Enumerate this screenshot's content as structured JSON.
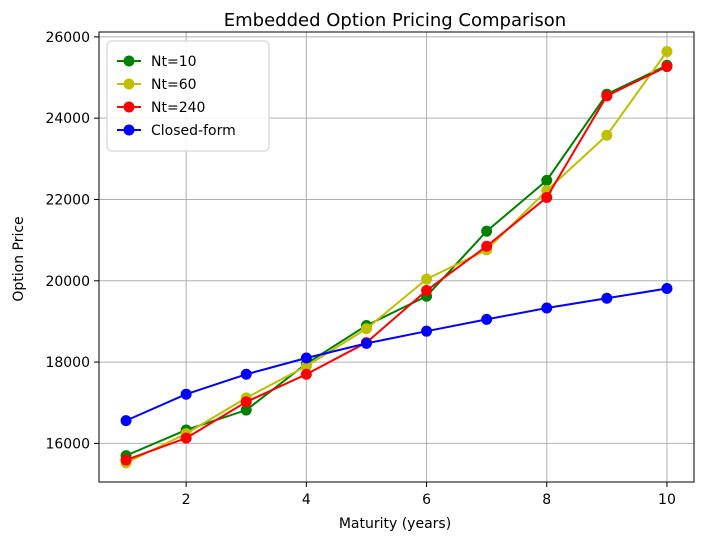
{
  "chart_data": {
    "type": "line",
    "title": "Embedded Option Pricing Comparison",
    "xlabel": "Maturity (years)",
    "ylabel": "Option Price",
    "x": [
      1,
      2,
      3,
      4,
      5,
      6,
      7,
      8,
      9,
      10
    ],
    "xlim": [
      0.55,
      10.45
    ],
    "ylim": [
      15050,
      26120
    ],
    "xticks": [
      2,
      4,
      6,
      8,
      10
    ],
    "yticks": [
      16000,
      18000,
      20000,
      22000,
      24000,
      26000
    ],
    "grid": true,
    "legend_position": "upper-left",
    "series": [
      {
        "name": "Nt=10",
        "color": "#008000",
        "values": [
          15700,
          16330,
          16820,
          17960,
          18900,
          19620,
          21220,
          22470,
          24590,
          25300
        ]
      },
      {
        "name": "Nt=60",
        "color": "#bfbf00",
        "values": [
          15520,
          16240,
          17120,
          17900,
          18820,
          20040,
          20760,
          22220,
          23580,
          25640
        ]
      },
      {
        "name": "Nt=240",
        "color": "#ff0000",
        "values": [
          15590,
          16130,
          17020,
          17700,
          18480,
          19760,
          20850,
          22050,
          24550,
          25270
        ]
      },
      {
        "name": "Closed-form",
        "color": "#0000ff",
        "values": [
          16560,
          17210,
          17700,
          18100,
          18460,
          18760,
          19050,
          19330,
          19570,
          19810
        ]
      }
    ]
  }
}
